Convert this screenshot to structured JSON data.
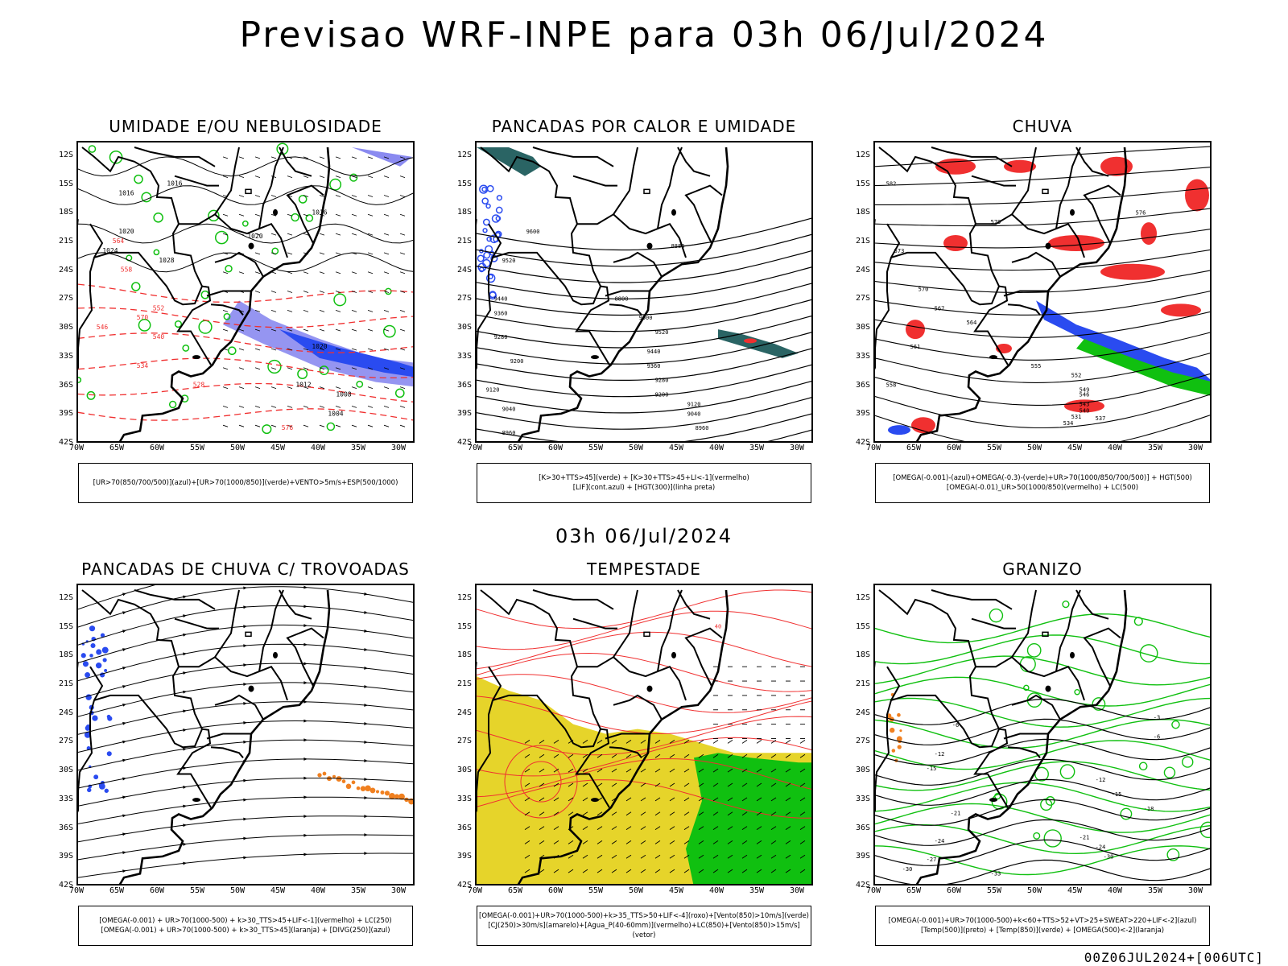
{
  "title": "Previsao WRF-INPE  para 03h 06/Jul/2024",
  "mid_title": "03h 06/Jul/2024",
  "footer": "00Z06JUL2024+[006UTC]",
  "lat_labels": [
    "12S",
    "15S",
    "18S",
    "21S",
    "24S",
    "27S",
    "30S",
    "33S",
    "36S",
    "39S",
    "42S"
  ],
  "lon_labels": [
    "70W",
    "65W",
    "60W",
    "55W",
    "50W",
    "45W",
    "40W",
    "35W",
    "30W"
  ],
  "colors": {
    "blue": "#2a4bf0",
    "green": "#10c010",
    "red": "#f03030",
    "yellow": "#e6d42a",
    "orange": "#f08020",
    "lavender": "#8a8af0",
    "teal": "#2a6464"
  },
  "panels": [
    {
      "title": "UMIDADE E/OU NEBULOSIDADE",
      "legend": [
        "[UR>70(850/700/500)](azul)+[UR>70(1000/850)](verde)+VENTO>5m/s+ESP(500/1000)"
      ],
      "contour_labels": [
        "1016",
        "1016",
        "1020",
        "1024",
        "1028",
        "1016",
        "1020",
        "1020",
        "1012",
        "1008",
        "1004",
        "576",
        "570",
        "564",
        "558",
        "552",
        "546",
        "540",
        "534",
        "528"
      ]
    },
    {
      "title": "PANCADAS POR CALOR E UMIDADE",
      "legend": [
        "[K>30+TTS>45](verde) + [K>30+TTS>45+LI<-1](vermelho)",
        "[LIF](cont.azul) + [HGT(300)](linha preta)"
      ],
      "contour_labels": [
        "9600",
        "9520",
        "9440",
        "9360",
        "9280",
        "9200",
        "9120",
        "9040",
        "8960",
        "8880",
        "8800",
        "9600",
        "9520",
        "9440",
        "9360",
        "9280",
        "9200",
        "9120",
        "9040",
        "8960"
      ]
    },
    {
      "title": "CHUVA",
      "legend": [
        "[OMEGA(-0.001)-(azul)+OMEGA(-0.3)-(verde)+UR>70(1000/850/700/500)] + HGT(500)",
        "[OMEGA(-0.01)_UR>50(1000/850)(vermelho) + LC(500)"
      ],
      "contour_labels": [
        "582",
        "579",
        "576",
        "573",
        "570",
        "567",
        "564",
        "561",
        "558",
        "555",
        "552",
        "549",
        "546",
        "543",
        "540",
        "537",
        "534",
        "531"
      ]
    },
    {
      "title": "PANCADAS DE CHUVA C/ TROVOADAS",
      "legend": [
        "[OMEGA(-0.001) + UR>70(1000-500) + k>30_TTS>45+LIF<-1](vermelho) + LC(250)",
        "[OMEGA(-0.001) + UR>70(1000-500) + k>30_TTS>45](laranja) + [DIVG(250)](azul)"
      ],
      "contour_labels": []
    },
    {
      "title": "TEMPESTADE",
      "legend": [
        "[OMEGA(-0.001)+UR>70(1000-500)+k>35_TTS>50+LIF<-4](roxo)+[Vento(850)>10m/s](verde)",
        "[CJ(250)>30m/s](amarelo)+[Agua_P(40-60mm)](vermelho)+LC(850)+[Vento(850)>15m/s](vetor)"
      ],
      "contour_labels": [
        "40"
      ]
    },
    {
      "title": "GRANIZO",
      "legend": [
        "[OMEGA(-0.001)+UR>70(1000-500)+k<60+TTS>52+VT>25+SWEAT>220+LIF<-2](azul)",
        "[Temp(500)](preto) + [Temp(850)](verde) + [OMEGA(500)<-2](laranja)"
      ],
      "contour_labels": [
        "-6",
        "-12",
        "-15",
        "-21",
        "-24",
        "-27",
        "-30",
        "-33",
        "-12",
        "-15",
        "-18",
        "-21",
        "-24",
        "-30",
        "-3",
        "-6"
      ]
    }
  ]
}
